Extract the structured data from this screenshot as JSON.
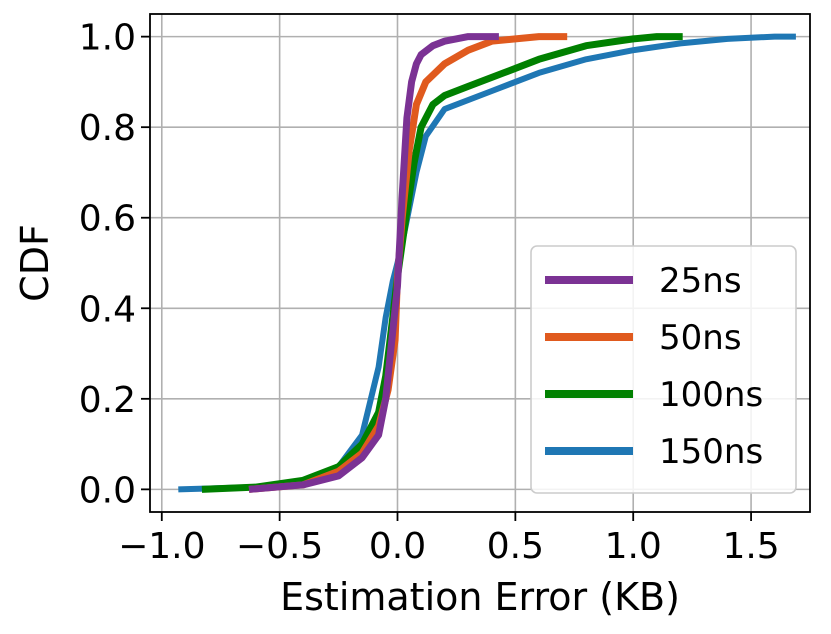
{
  "chart_data": {
    "type": "line",
    "title": "",
    "xlabel": "Estimation Error (KB)",
    "ylabel": "CDF",
    "xlim": [
      -1.05,
      1.75
    ],
    "ylim": [
      -0.05,
      1.05
    ],
    "xticks": [
      -1.0,
      -0.5,
      0.0,
      0.5,
      1.0,
      1.5
    ],
    "xtick_labels": [
      "−1.0",
      "−0.5",
      "0.0",
      "0.5",
      "1.0",
      "1.5"
    ],
    "yticks": [
      0.0,
      0.2,
      0.4,
      0.6,
      0.8,
      1.0
    ],
    "ytick_labels": [
      "0.0",
      "0.2",
      "0.4",
      "0.6",
      "0.8",
      "1.0"
    ],
    "grid": true,
    "legend_position": "lower-right",
    "series": [
      {
        "name": "150ns",
        "color": "#1f77b4",
        "x": [
          -0.93,
          -0.6,
          -0.4,
          -0.25,
          -0.15,
          -0.08,
          -0.05,
          -0.02,
          0.0,
          0.03,
          0.08,
          0.12,
          0.2,
          0.4,
          0.6,
          0.8,
          1.0,
          1.2,
          1.4,
          1.6,
          1.69
        ],
        "y": [
          0.0,
          0.005,
          0.02,
          0.05,
          0.12,
          0.27,
          0.38,
          0.46,
          0.5,
          0.57,
          0.7,
          0.78,
          0.84,
          0.88,
          0.92,
          0.95,
          0.97,
          0.985,
          0.995,
          1.0,
          1.0
        ]
      },
      {
        "name": "100ns",
        "color": "#008000",
        "x": [
          -0.83,
          -0.6,
          -0.4,
          -0.25,
          -0.15,
          -0.08,
          -0.05,
          -0.02,
          0.0,
          0.03,
          0.07,
          0.1,
          0.15,
          0.2,
          0.3,
          0.45,
          0.6,
          0.8,
          1.0,
          1.1,
          1.21
        ],
        "y": [
          0.0,
          0.005,
          0.02,
          0.05,
          0.1,
          0.17,
          0.25,
          0.38,
          0.47,
          0.58,
          0.72,
          0.8,
          0.85,
          0.87,
          0.89,
          0.92,
          0.95,
          0.98,
          0.995,
          1.0,
          1.0
        ]
      },
      {
        "name": "50ns",
        "color": "#e05a1e",
        "x": [
          -0.63,
          -0.4,
          -0.25,
          -0.15,
          -0.08,
          -0.04,
          -0.01,
          0.0,
          0.02,
          0.05,
          0.08,
          0.12,
          0.2,
          0.3,
          0.4,
          0.5,
          0.6,
          0.72
        ],
        "y": [
          0.0,
          0.01,
          0.04,
          0.08,
          0.14,
          0.22,
          0.33,
          0.47,
          0.6,
          0.75,
          0.85,
          0.9,
          0.94,
          0.97,
          0.99,
          0.995,
          1.0,
          1.0
        ]
      },
      {
        "name": "25ns",
        "color": "#7b3294",
        "x": [
          -0.63,
          -0.4,
          -0.25,
          -0.15,
          -0.08,
          -0.05,
          -0.02,
          0.0,
          0.02,
          0.04,
          0.06,
          0.08,
          0.1,
          0.15,
          0.2,
          0.3,
          0.35,
          0.43
        ],
        "y": [
          0.0,
          0.01,
          0.03,
          0.07,
          0.12,
          0.2,
          0.35,
          0.45,
          0.65,
          0.82,
          0.9,
          0.94,
          0.96,
          0.98,
          0.99,
          1.0,
          1.0,
          1.0
        ]
      }
    ],
    "legend_order": [
      "25ns",
      "50ns",
      "100ns",
      "150ns"
    ]
  }
}
